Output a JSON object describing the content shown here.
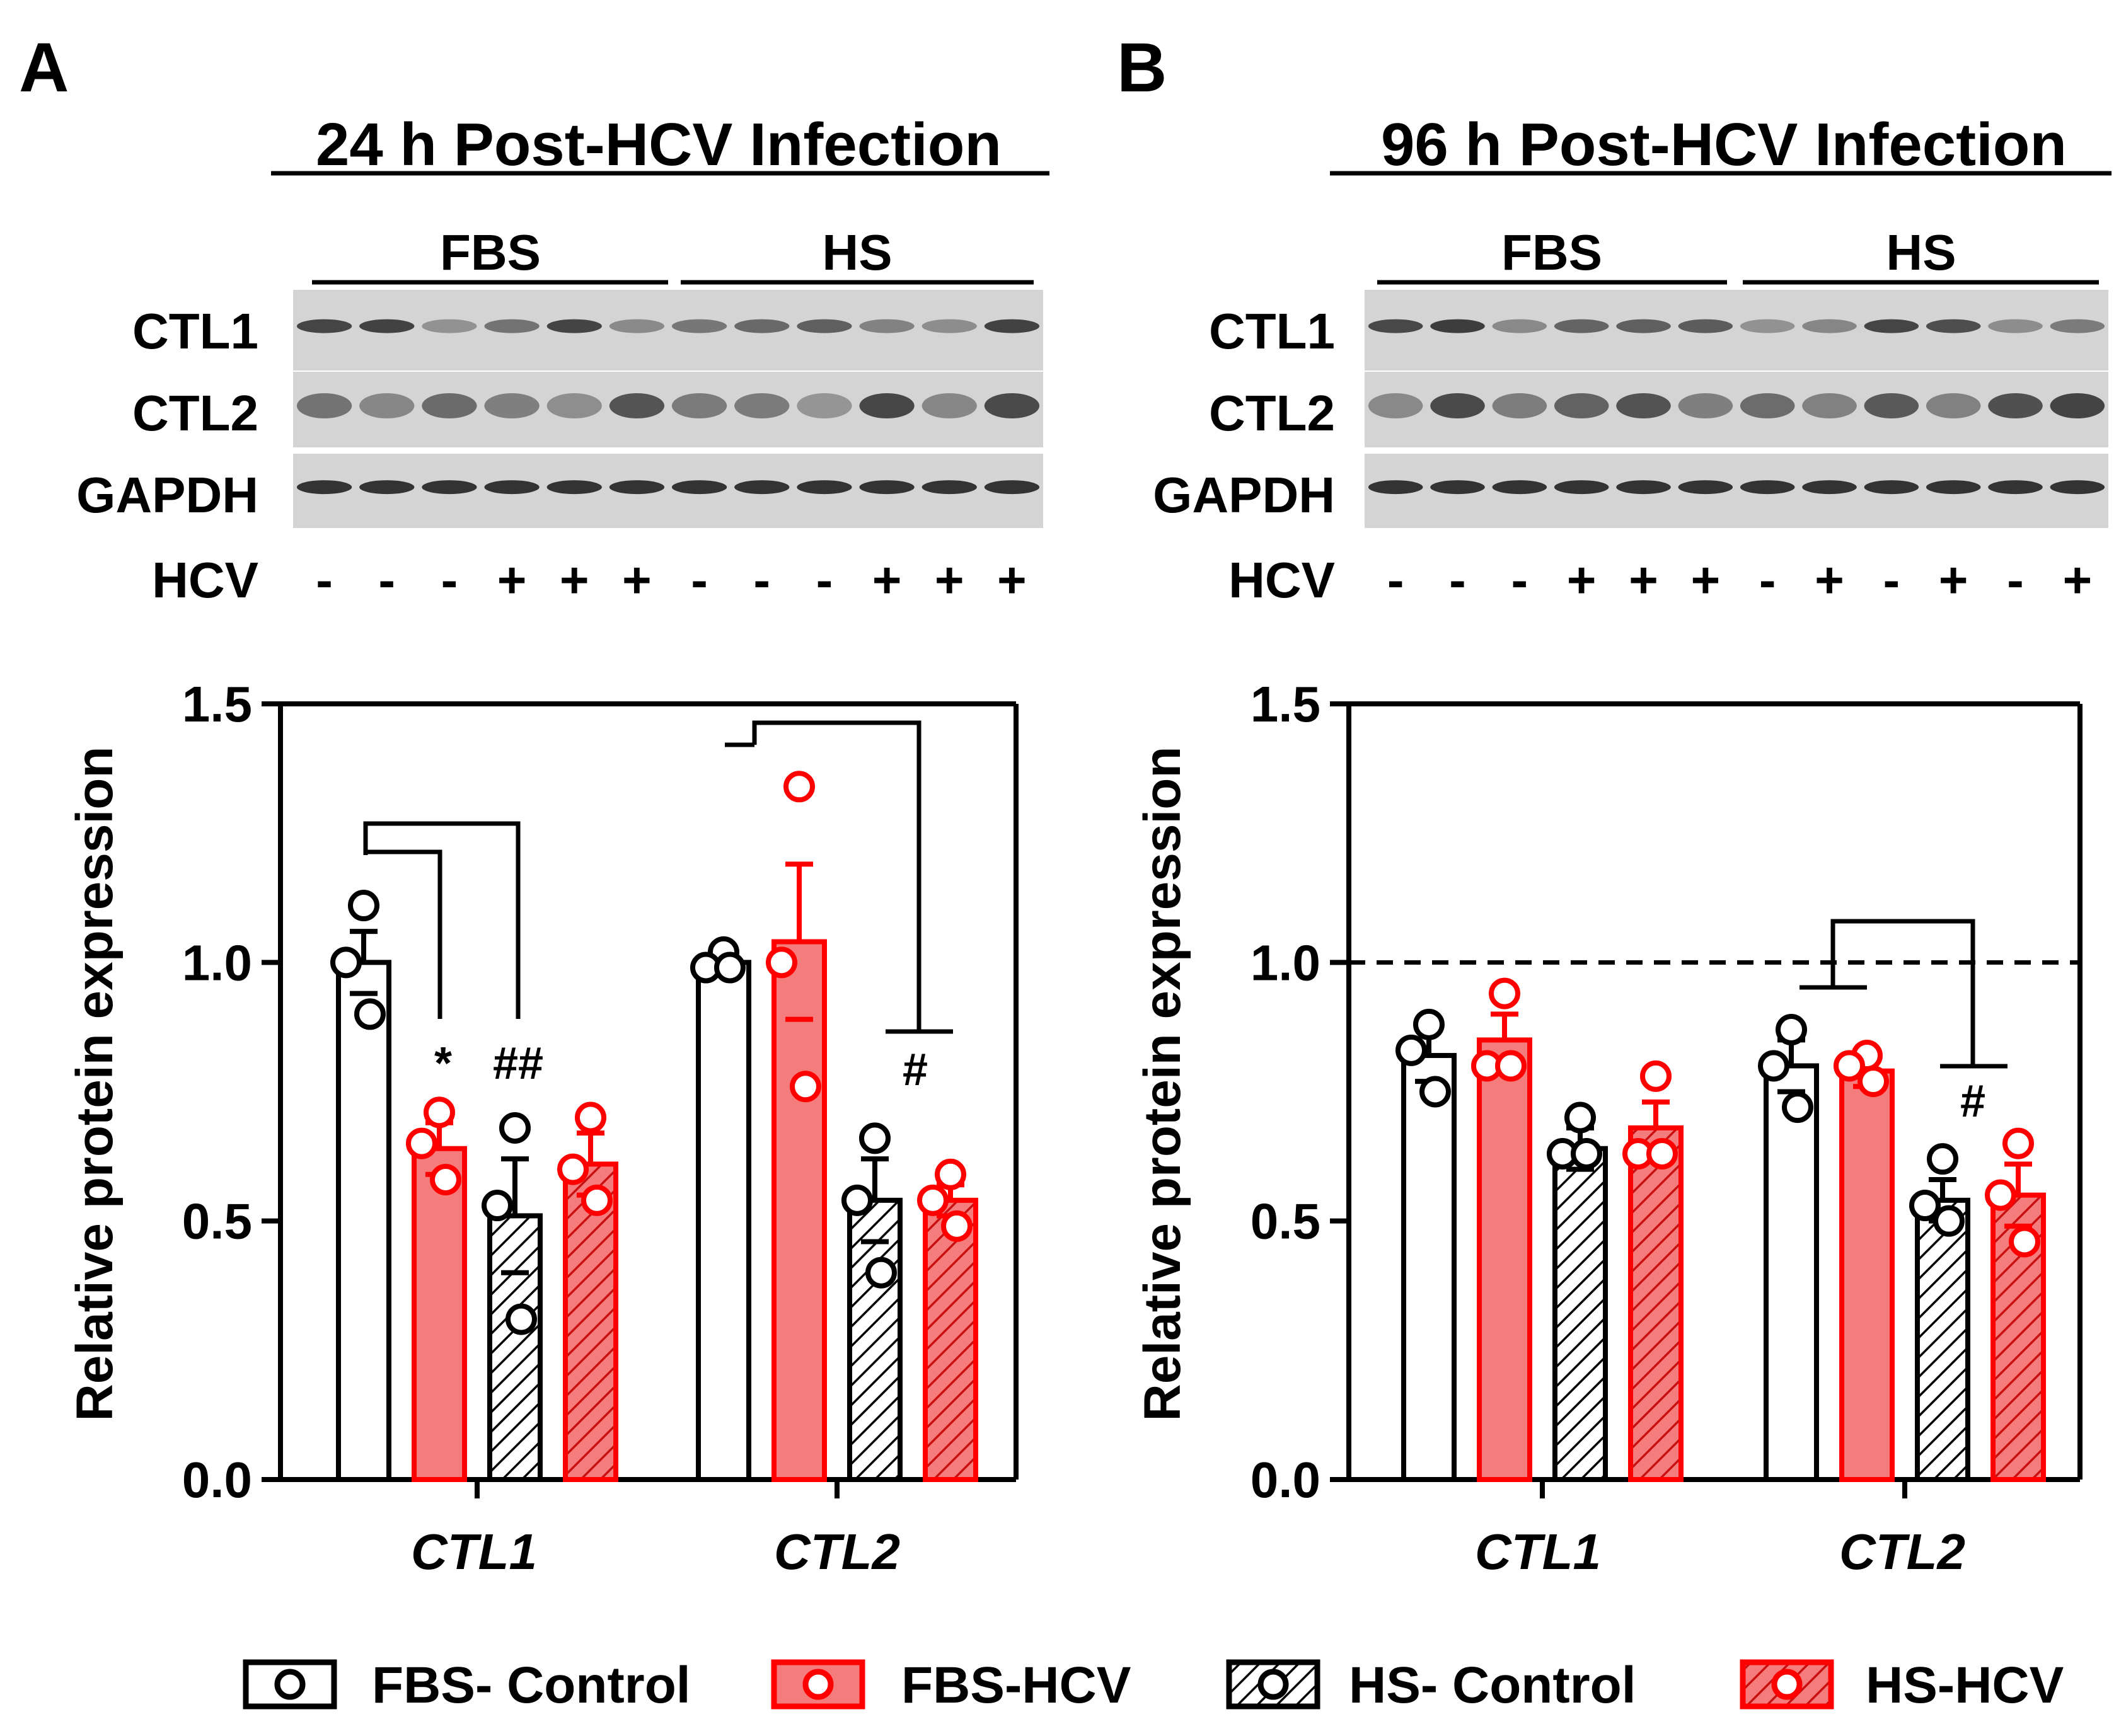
{
  "panels": [
    {
      "letter": "A",
      "title": "24 h Post-HCV Infection",
      "blot": {
        "groups": [
          "FBS",
          "HS"
        ],
        "rows": [
          "CTL1",
          "CTL2",
          "GAPDH"
        ],
        "hcv_label": "HCV",
        "hcv_signs": [
          "-",
          "-",
          "-",
          "+",
          "+",
          "+",
          "-",
          "-",
          "-",
          "+",
          "+",
          "+"
        ]
      },
      "significance": [
        "*",
        "##",
        "#"
      ]
    },
    {
      "letter": "B",
      "title": "96 h Post-HCV Infection",
      "blot": {
        "groups": [
          "FBS",
          "HS"
        ],
        "rows": [
          "CTL1",
          "CTL2",
          "GAPDH"
        ],
        "hcv_label": "HCV",
        "hcv_signs": [
          "-",
          "-",
          "-",
          "+",
          "+",
          "+",
          "-",
          "+",
          "-",
          "+",
          "-",
          "+"
        ]
      },
      "significance": [
        "#"
      ]
    }
  ],
  "colors": {
    "red": "#ff0000",
    "red_fill": "#f47c7c",
    "black": "#000000",
    "band": "#2a2a2a",
    "blot_bg": "#d4d4d4"
  },
  "legend": [
    {
      "label": "FBS- Control",
      "style": "white"
    },
    {
      "label": "FBS-HCV",
      "style": "red"
    },
    {
      "label": "HS- Control",
      "style": "hatch"
    },
    {
      "label": "HS-HCV",
      "style": "red-hatch"
    }
  ],
  "chart_data": [
    {
      "type": "bar",
      "title": "24 h Post-HCV Infection",
      "ylabel": "Relative protein expression",
      "xlabel": "",
      "ylim": [
        0,
        1.5
      ],
      "yticks": [
        "0.0",
        "0.5",
        "1.0",
        "1.5"
      ],
      "categories": [
        "CTL1",
        "CTL2"
      ],
      "reference_line": null,
      "series": [
        {
          "name": "FBS- Control",
          "values": [
            1.0,
            1.0
          ],
          "errors": [
            0.06,
            0.0
          ],
          "points": [
            [
              1.11,
              1.0,
              0.9
            ],
            [
              1.02,
              0.99,
              0.99
            ]
          ]
        },
        {
          "name": "FBS-HCV",
          "values": [
            0.64,
            1.04
          ],
          "errors": [
            0.05,
            0.15
          ],
          "points": [
            [
              0.71,
              0.65,
              0.58
            ],
            [
              1.34,
              1.0,
              0.76
            ]
          ]
        },
        {
          "name": "HS- Control",
          "values": [
            0.51,
            0.54
          ],
          "errors": [
            0.11,
            0.08
          ],
          "points": [
            [
              0.68,
              0.53,
              0.31
            ],
            [
              0.66,
              0.54,
              0.4
            ]
          ]
        },
        {
          "name": "HS-HCV",
          "values": [
            0.61,
            0.54
          ],
          "errors": [
            0.06,
            0.03
          ],
          "points": [
            [
              0.7,
              0.6,
              0.54
            ],
            [
              0.59,
              0.54,
              0.49
            ]
          ]
        }
      ]
    },
    {
      "type": "bar",
      "title": "96 h Post-HCV Infection",
      "ylabel": "Relative protein expression",
      "xlabel": "",
      "ylim": [
        0,
        1.5
      ],
      "yticks": [
        "0.0",
        "0.5",
        "1.0",
        "1.5"
      ],
      "categories": [
        "CTL1",
        "CTL2"
      ],
      "reference_line": 1.0,
      "series": [
        {
          "name": "FBS- Control",
          "values": [
            0.82,
            0.8
          ],
          "errors": [
            0.05,
            0.05
          ],
          "points": [
            [
              0.88,
              0.83,
              0.75
            ],
            [
              0.87,
              0.8,
              0.72
            ]
          ]
        },
        {
          "name": "FBS-HCV",
          "values": [
            0.85,
            0.79
          ],
          "errors": [
            0.05,
            0.03
          ],
          "points": [
            [
              0.94,
              0.8,
              0.8
            ],
            [
              0.82,
              0.8,
              0.77
            ]
          ]
        },
        {
          "name": "HS- Control",
          "values": [
            0.64,
            0.54
          ],
          "errors": [
            0.04,
            0.04
          ],
          "points": [
            [
              0.7,
              0.63,
              0.63
            ],
            [
              0.62,
              0.53,
              0.5
            ]
          ]
        },
        {
          "name": "HS-HCV",
          "values": [
            0.68,
            0.55
          ],
          "errors": [
            0.05,
            0.06
          ],
          "points": [
            [
              0.78,
              0.63,
              0.63
            ],
            [
              0.65,
              0.55,
              0.46
            ]
          ]
        }
      ]
    }
  ]
}
